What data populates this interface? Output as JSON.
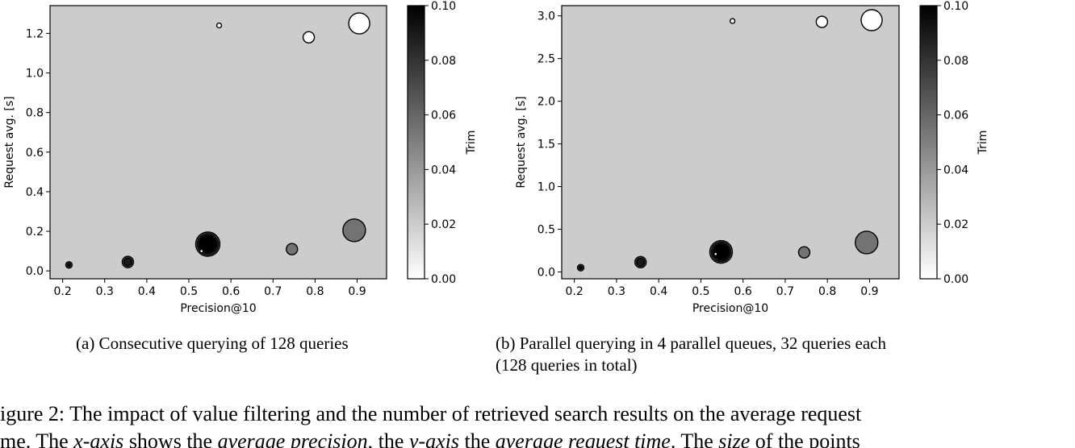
{
  "chart_data": [
    {
      "type": "scatter",
      "xlabel": "Precision@10",
      "ylabel": "Request avg. [s]",
      "xlim": [
        0.17,
        0.97
      ],
      "ylim": [
        -0.04,
        1.34
      ],
      "xticks": [
        "0.2",
        "0.3",
        "0.4",
        "0.5",
        "0.6",
        "0.7",
        "0.8",
        "0.9"
      ],
      "yticks": [
        "0.0",
        "0.2",
        "0.4",
        "0.6",
        "0.8",
        "1.0",
        "1.2"
      ],
      "colorbar": {
        "label": "Trim",
        "range": [
          0.0,
          0.1
        ],
        "ticks": [
          "0.00",
          "0.02",
          "0.04",
          "0.06",
          "0.08",
          "0.10"
        ],
        "colors": [
          "#ffffff",
          "#000000"
        ]
      },
      "background_color": "#cccccc",
      "points": [
        {
          "x": 0.215,
          "y": 0.03,
          "size": 4,
          "trim": 0.07
        },
        {
          "x": 0.215,
          "y": 0.03,
          "size": 2,
          "trim": 0.1
        },
        {
          "x": 0.355,
          "y": 0.045,
          "size": 7,
          "trim": 0.06
        },
        {
          "x": 0.355,
          "y": 0.045,
          "size": 5,
          "trim": 0.09
        },
        {
          "x": 0.545,
          "y": 0.135,
          "size": 15,
          "trim": 0.06
        },
        {
          "x": 0.545,
          "y": 0.135,
          "size": 13,
          "trim": 0.08
        },
        {
          "x": 0.545,
          "y": 0.135,
          "size": 11,
          "trim": 0.1
        },
        {
          "x": 0.53,
          "y": 0.1,
          "size": 2,
          "trim": 0.0
        },
        {
          "x": 0.745,
          "y": 0.11,
          "size": 7,
          "trim": 0.055
        },
        {
          "x": 0.893,
          "y": 0.205,
          "size": 14,
          "trim": 0.055
        },
        {
          "x": 0.572,
          "y": 1.24,
          "size": 3,
          "trim": 0.0
        },
        {
          "x": 0.785,
          "y": 1.18,
          "size": 7,
          "trim": 0.0
        },
        {
          "x": 0.905,
          "y": 1.25,
          "size": 13,
          "trim": 0.0
        }
      ],
      "caption": "(a) Consecutive querying of 128 queries"
    },
    {
      "type": "scatter",
      "xlabel": "Precision@10",
      "ylabel": "Request avg. [s]",
      "xlim": [
        0.17,
        0.97
      ],
      "ylim": [
        -0.08,
        3.12
      ],
      "xticks": [
        "0.2",
        "0.3",
        "0.4",
        "0.5",
        "0.6",
        "0.7",
        "0.8",
        "0.9"
      ],
      "yticks": [
        "0.0",
        "0.5",
        "1.0",
        "1.5",
        "2.0",
        "2.5",
        "3.0"
      ],
      "colorbar": {
        "label": "Trim",
        "range": [
          0.0,
          0.1
        ],
        "ticks": [
          "0.00",
          "0.02",
          "0.04",
          "0.06",
          "0.08",
          "0.10"
        ],
        "colors": [
          "#ffffff",
          "#000000"
        ]
      },
      "background_color": "#cccccc",
      "points": [
        {
          "x": 0.215,
          "y": 0.05,
          "size": 4,
          "trim": 0.07
        },
        {
          "x": 0.215,
          "y": 0.05,
          "size": 2,
          "trim": 0.1
        },
        {
          "x": 0.357,
          "y": 0.115,
          "size": 7,
          "trim": 0.06
        },
        {
          "x": 0.357,
          "y": 0.115,
          "size": 5,
          "trim": 0.09
        },
        {
          "x": 0.548,
          "y": 0.235,
          "size": 14,
          "trim": 0.06
        },
        {
          "x": 0.548,
          "y": 0.235,
          "size": 12,
          "trim": 0.08
        },
        {
          "x": 0.548,
          "y": 0.235,
          "size": 10,
          "trim": 0.1
        },
        {
          "x": 0.535,
          "y": 0.21,
          "size": 2,
          "trim": 0.0
        },
        {
          "x": 0.745,
          "y": 0.23,
          "size": 7,
          "trim": 0.055
        },
        {
          "x": 0.893,
          "y": 0.345,
          "size": 14,
          "trim": 0.055
        },
        {
          "x": 0.575,
          "y": 2.94,
          "size": 3,
          "trim": 0.0
        },
        {
          "x": 0.787,
          "y": 2.93,
          "size": 7,
          "trim": 0.0
        },
        {
          "x": 0.905,
          "y": 2.95,
          "size": 13,
          "trim": 0.0
        }
      ],
      "caption_lines": [
        "(b) Parallel querying in 4 parallel queues, 32 queries each",
        "(128 queries in total)"
      ]
    }
  ],
  "figure_caption": {
    "line1": "igure 2: The impact of value filtering and the number of retrieved search results on the average request",
    "line2_parts": [
      {
        "text": "me. The ",
        "italic": false
      },
      {
        "text": "x-axis",
        "italic": true
      },
      {
        "text": " shows the ",
        "italic": false
      },
      {
        "text": "average precision",
        "italic": true
      },
      {
        "text": ", the ",
        "italic": false
      },
      {
        "text": "y-axis",
        "italic": true
      },
      {
        "text": " the ",
        "italic": false
      },
      {
        "text": "average request time",
        "italic": true
      },
      {
        "text": ". The ",
        "italic": false
      },
      {
        "text": "size",
        "italic": true
      },
      {
        "text": " of the points",
        "italic": false
      }
    ]
  }
}
